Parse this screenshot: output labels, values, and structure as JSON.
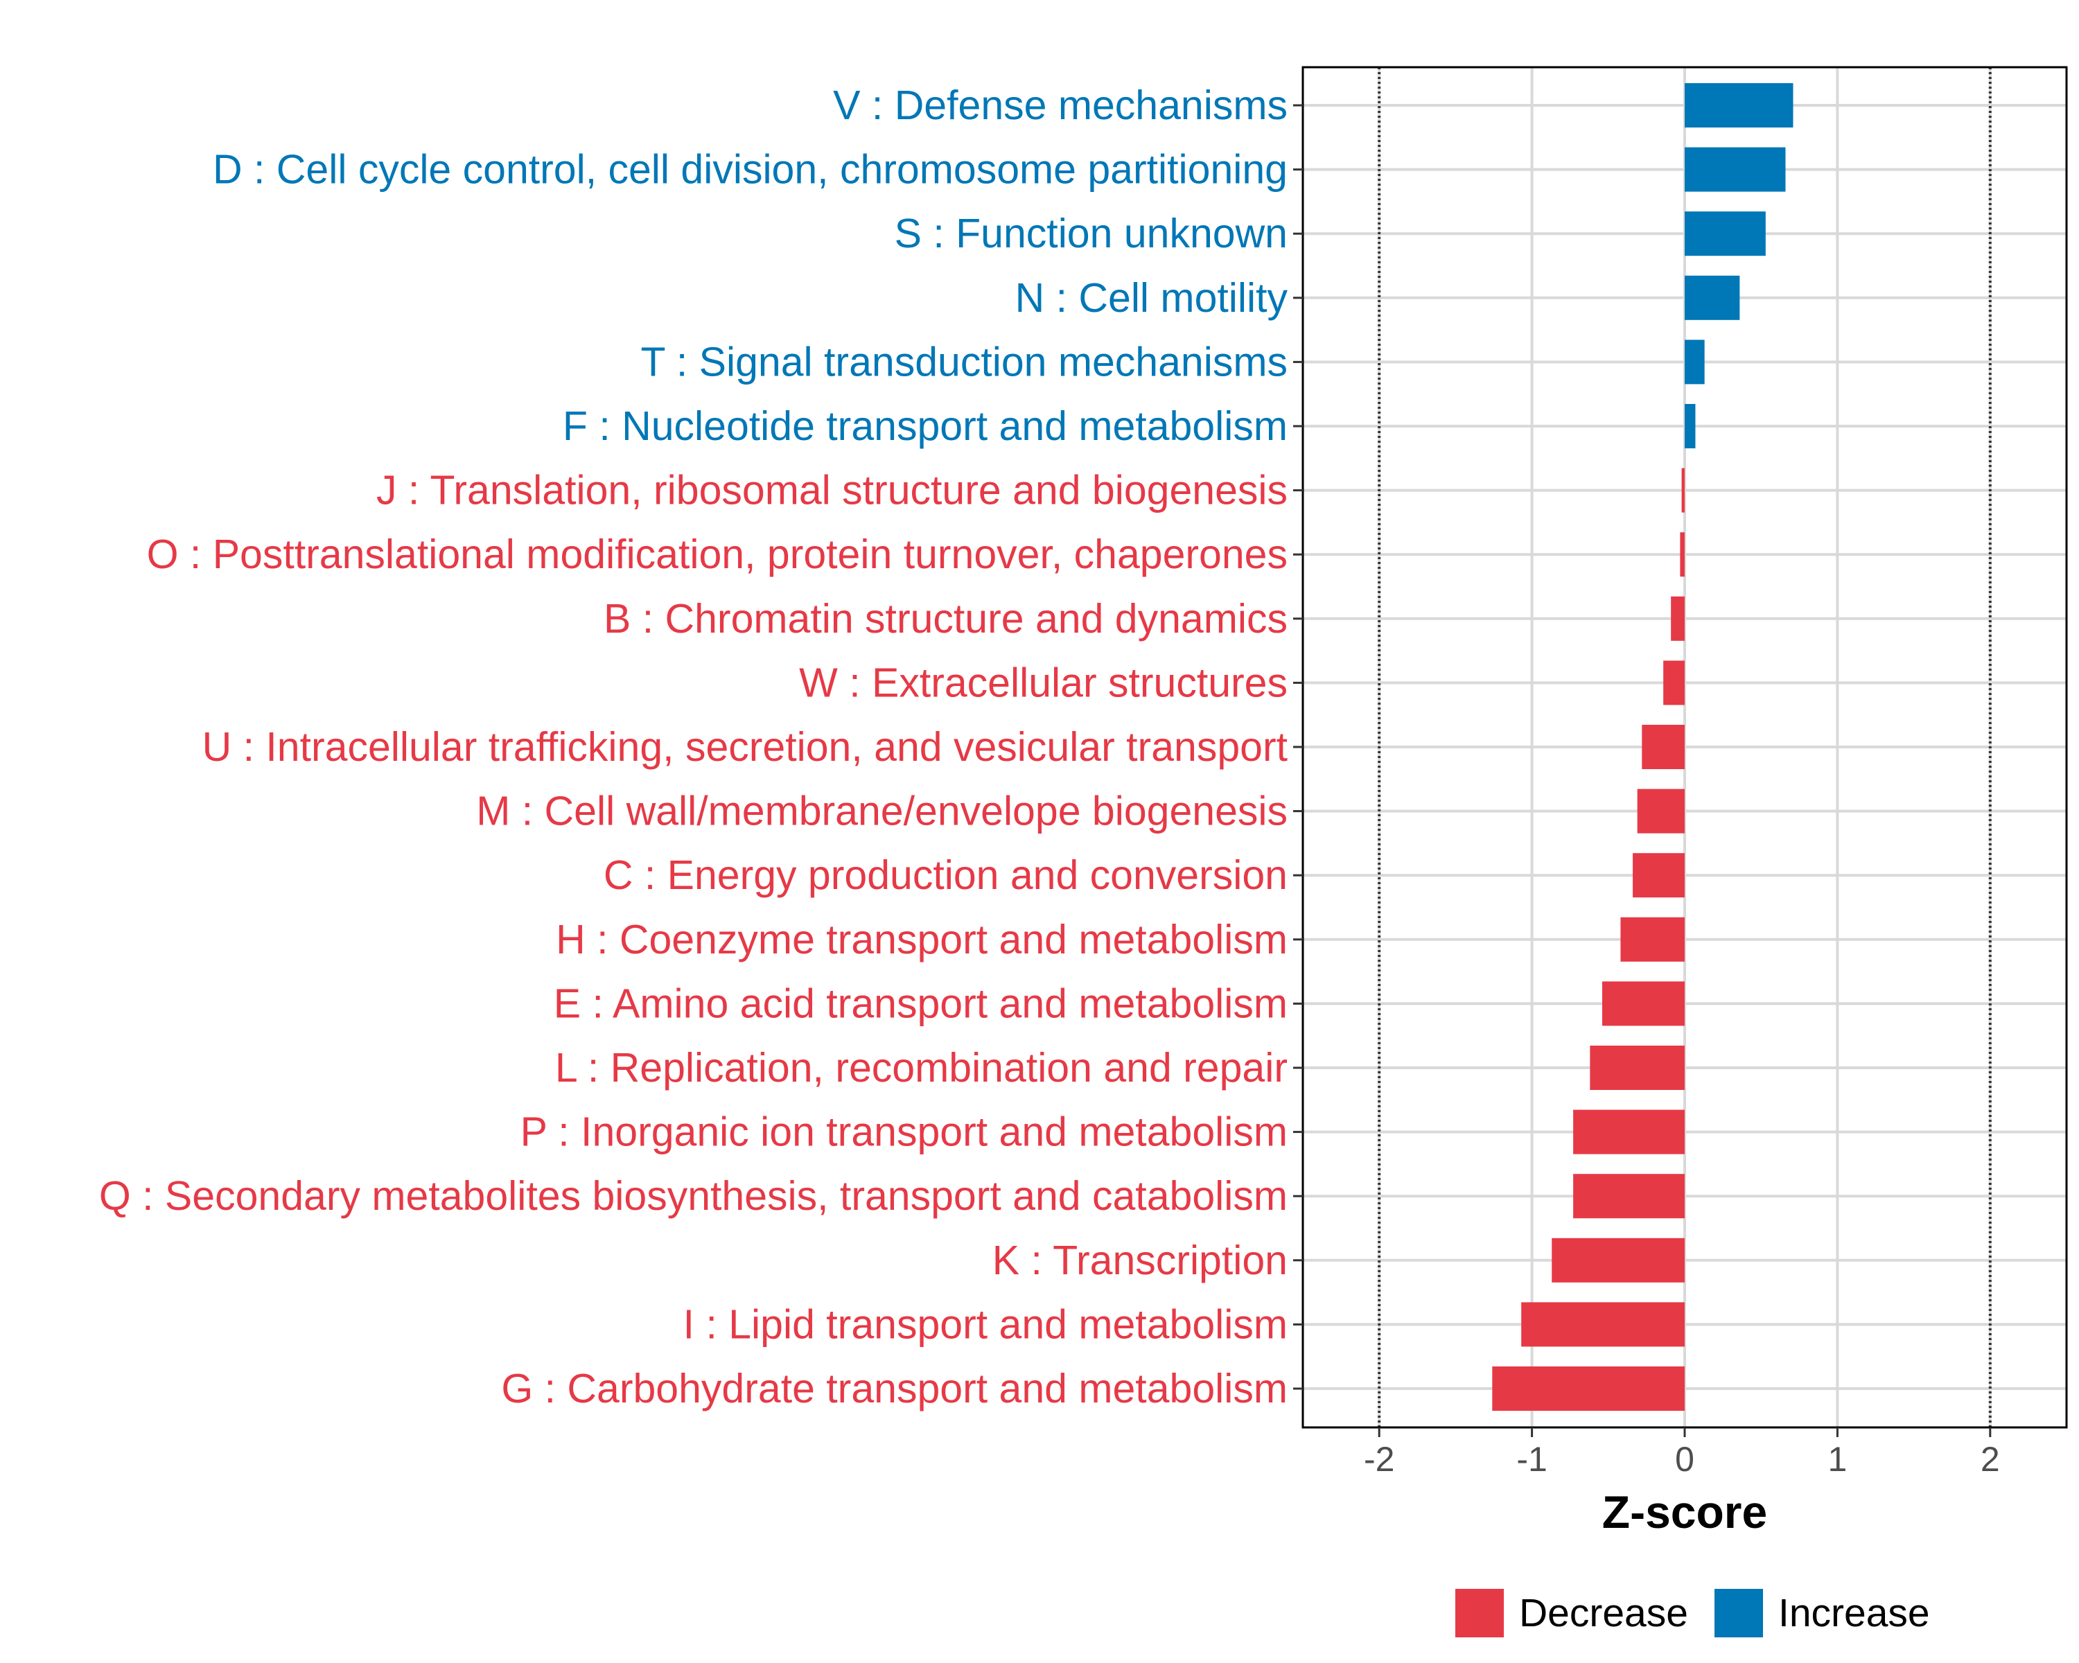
{
  "chart_data": {
    "type": "bar",
    "orientation": "horizontal",
    "xlabel": "Z-score",
    "xlim": [
      -2.5,
      2.5
    ],
    "xticks": [
      -2,
      -1,
      0,
      1,
      2
    ],
    "tick_labels": [
      "-2",
      "-1",
      "0",
      "1",
      "2"
    ],
    "reference_lines": [
      -2,
      2
    ],
    "legend": {
      "position": "bottom",
      "items": [
        {
          "label": "Decrease",
          "color": "#E63946"
        },
        {
          "label": "Increase",
          "color": "#0077B6"
        }
      ]
    },
    "categories": [
      {
        "label": "V : Defense mechanisms",
        "value": 0.71,
        "group": "Increase"
      },
      {
        "label": "D : Cell cycle control, cell division, chromosome partitioning",
        "value": 0.66,
        "group": "Increase"
      },
      {
        "label": "S : Function unknown",
        "value": 0.53,
        "group": "Increase"
      },
      {
        "label": "N : Cell motility",
        "value": 0.36,
        "group": "Increase"
      },
      {
        "label": "T : Signal transduction mechanisms",
        "value": 0.13,
        "group": "Increase"
      },
      {
        "label": "F : Nucleotide transport and metabolism",
        "value": 0.07,
        "group": "Increase"
      },
      {
        "label": "J : Translation, ribosomal structure and biogenesis",
        "value": -0.02,
        "group": "Decrease"
      },
      {
        "label": "O : Posttranslational modification, protein turnover, chaperones",
        "value": -0.03,
        "group": "Decrease"
      },
      {
        "label": "B : Chromatin structure and dynamics",
        "value": -0.09,
        "group": "Decrease"
      },
      {
        "label": "W : Extracellular structures",
        "value": -0.14,
        "group": "Decrease"
      },
      {
        "label": "U : Intracellular trafficking, secretion, and vesicular transport",
        "value": -0.28,
        "group": "Decrease"
      },
      {
        "label": "M : Cell wall/membrane/envelope biogenesis",
        "value": -0.31,
        "group": "Decrease"
      },
      {
        "label": "C : Energy production and conversion",
        "value": -0.34,
        "group": "Decrease"
      },
      {
        "label": "H : Coenzyme transport and metabolism",
        "value": -0.42,
        "group": "Decrease"
      },
      {
        "label": "E : Amino acid transport and metabolism",
        "value": -0.54,
        "group": "Decrease"
      },
      {
        "label": "L : Replication, recombination and repair",
        "value": -0.62,
        "group": "Decrease"
      },
      {
        "label": "P : Inorganic ion transport and metabolism",
        "value": -0.73,
        "group": "Decrease"
      },
      {
        "label": "Q : Secondary metabolites biosynthesis, transport and catabolism",
        "value": -0.73,
        "group": "Decrease"
      },
      {
        "label": "K : Transcription",
        "value": -0.87,
        "group": "Decrease"
      },
      {
        "label": "I : Lipid transport and metabolism",
        "value": -1.07,
        "group": "Decrease"
      },
      {
        "label": "G : Carbohydrate transport and metabolism",
        "value": -1.26,
        "group": "Decrease"
      }
    ]
  }
}
